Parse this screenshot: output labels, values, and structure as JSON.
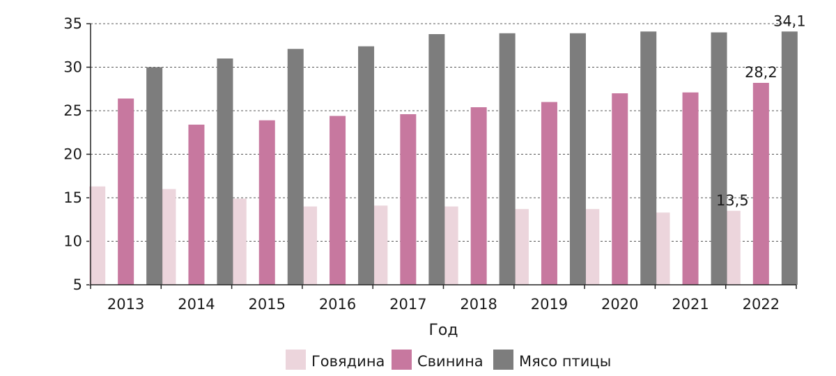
{
  "chart_data": {
    "type": "bar",
    "title": "",
    "xlabel": "Год",
    "ylabel": "",
    "ylim": [
      5,
      35
    ],
    "yticks": [
      5,
      10,
      15,
      20,
      25,
      30,
      35
    ],
    "grid": true,
    "legend_position": "bottom",
    "categories": [
      "2013",
      "2014",
      "2015",
      "2016",
      "2017",
      "2018",
      "2019",
      "2020",
      "2021",
      "2022"
    ],
    "series": [
      {
        "name": "Говядина",
        "color": "#ecd5dc",
        "values": [
          16.3,
          16.0,
          14.9,
          14.0,
          14.1,
          14.0,
          13.7,
          13.7,
          13.3,
          13.5
        ]
      },
      {
        "name": "Свинина",
        "color": "#c7789f",
        "values": [
          26.4,
          23.4,
          23.9,
          24.4,
          24.6,
          25.4,
          26.0,
          27.0,
          27.1,
          28.2
        ]
      },
      {
        "name": "Мясо птицы",
        "color": "#7d7d7d",
        "values": [
          30.0,
          31.0,
          32.1,
          32.4,
          33.8,
          33.9,
          33.9,
          34.1,
          34.0,
          34.1
        ]
      }
    ],
    "annotations": [
      {
        "text": "13,5",
        "series": 0,
        "category": "2022"
      },
      {
        "text": "28,2",
        "series": 1,
        "category": "2022"
      },
      {
        "text": "34,1",
        "series": 2,
        "category": "2022"
      }
    ]
  }
}
